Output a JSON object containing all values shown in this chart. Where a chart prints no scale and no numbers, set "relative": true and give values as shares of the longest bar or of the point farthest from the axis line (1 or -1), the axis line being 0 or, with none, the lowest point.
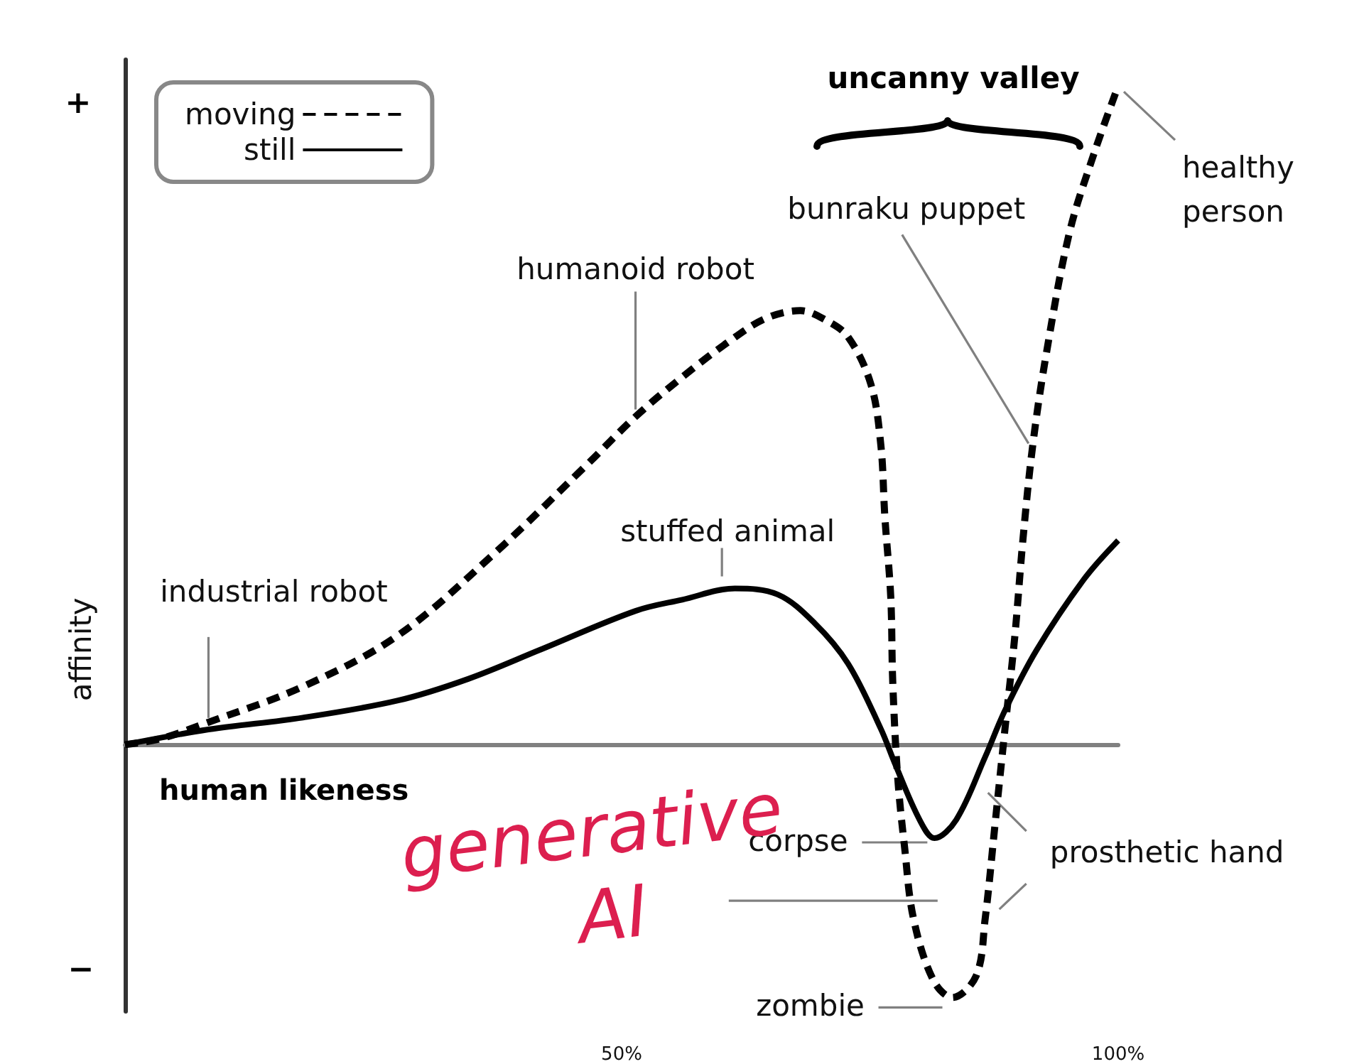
{
  "chart_data": {
    "type": "line",
    "relative": true,
    "xlabel": "human likeness",
    "ylabel": "affinity",
    "xlim": [
      0,
      100
    ],
    "xticks": [
      {
        "value": 50,
        "label": "50%"
      },
      {
        "value": 100,
        "label": "100%"
      }
    ],
    "legend": "top left",
    "series": [
      {
        "name": "moving",
        "color": "#000000",
        "line_style": "dashed",
        "x": [
          0,
          3.6,
          8.4,
          17.9,
          27.5,
          37.1,
          46.5,
          51.4,
          56.1,
          60.8,
          64.5,
          68,
          70.5,
          72.8,
          75.1,
          76.1,
          76.5,
          77.1,
          77.3,
          77.8,
          78.5,
          79.4,
          81.4,
          83.3,
          85.7,
          86.6,
          87.6,
          88.6,
          89.6,
          90.4,
          91.4,
          92.8,
          95.1,
          97.6,
          100
        ],
        "values": [
          0,
          0.009,
          0.034,
          0.088,
          0.166,
          0.289,
          0.425,
          0.498,
          0.558,
          0.612,
          0.647,
          0.659,
          0.645,
          0.619,
          0.547,
          0.455,
          0.347,
          0.224,
          0.095,
          -0.05,
          -0.157,
          -0.265,
          -0.358,
          -0.384,
          -0.351,
          -0.265,
          -0.121,
          0.024,
          0.166,
          0.31,
          0.455,
          0.597,
          0.778,
          0.899,
          1
        ]
      },
      {
        "name": "still",
        "color": "#000000",
        "line_style": "solid",
        "x": [
          0,
          8.4,
          17.9,
          27.5,
          34.6,
          41.8,
          51.4,
          56.1,
          61.4,
          65.7,
          69.4,
          72.8,
          76.1,
          77.5,
          80,
          81.5,
          83.7,
          86.6,
          88.6,
          91.8,
          96.6,
          100
        ],
        "values": [
          0,
          0.023,
          0.041,
          0.067,
          0.1,
          0.144,
          0.203,
          0.22,
          0.237,
          0.228,
          0.185,
          0.123,
          0.024,
          -0.028,
          -0.114,
          -0.142,
          -0.114,
          -0.019,
          0.052,
          0.144,
          0.252,
          0.31
        ]
      }
    ],
    "annotations": [
      {
        "text": "industrial robot",
        "x": 8.4,
        "y": 0.034
      },
      {
        "text": "humanoid robot",
        "x": 51.4,
        "y": 0.498
      },
      {
        "text": "stuffed animal",
        "x": 60.1,
        "y": 0.236
      },
      {
        "text": "bunraku puppet",
        "x": 91.4,
        "y": 0.455
      },
      {
        "text": "healthy person",
        "x": 100,
        "y": 1
      },
      {
        "text": "corpse",
        "x": 81.5,
        "y": -0.142
      },
      {
        "text": "zombie",
        "x": 83.3,
        "y": -0.384
      },
      {
        "text": "prosthetic hand",
        "x": 86.6,
        "y": -0.265
      },
      {
        "text": "generative AI",
        "x": 79.1,
        "y": -0.237
      },
      "uncanny valley",
      "+",
      "−"
    ]
  }
}
